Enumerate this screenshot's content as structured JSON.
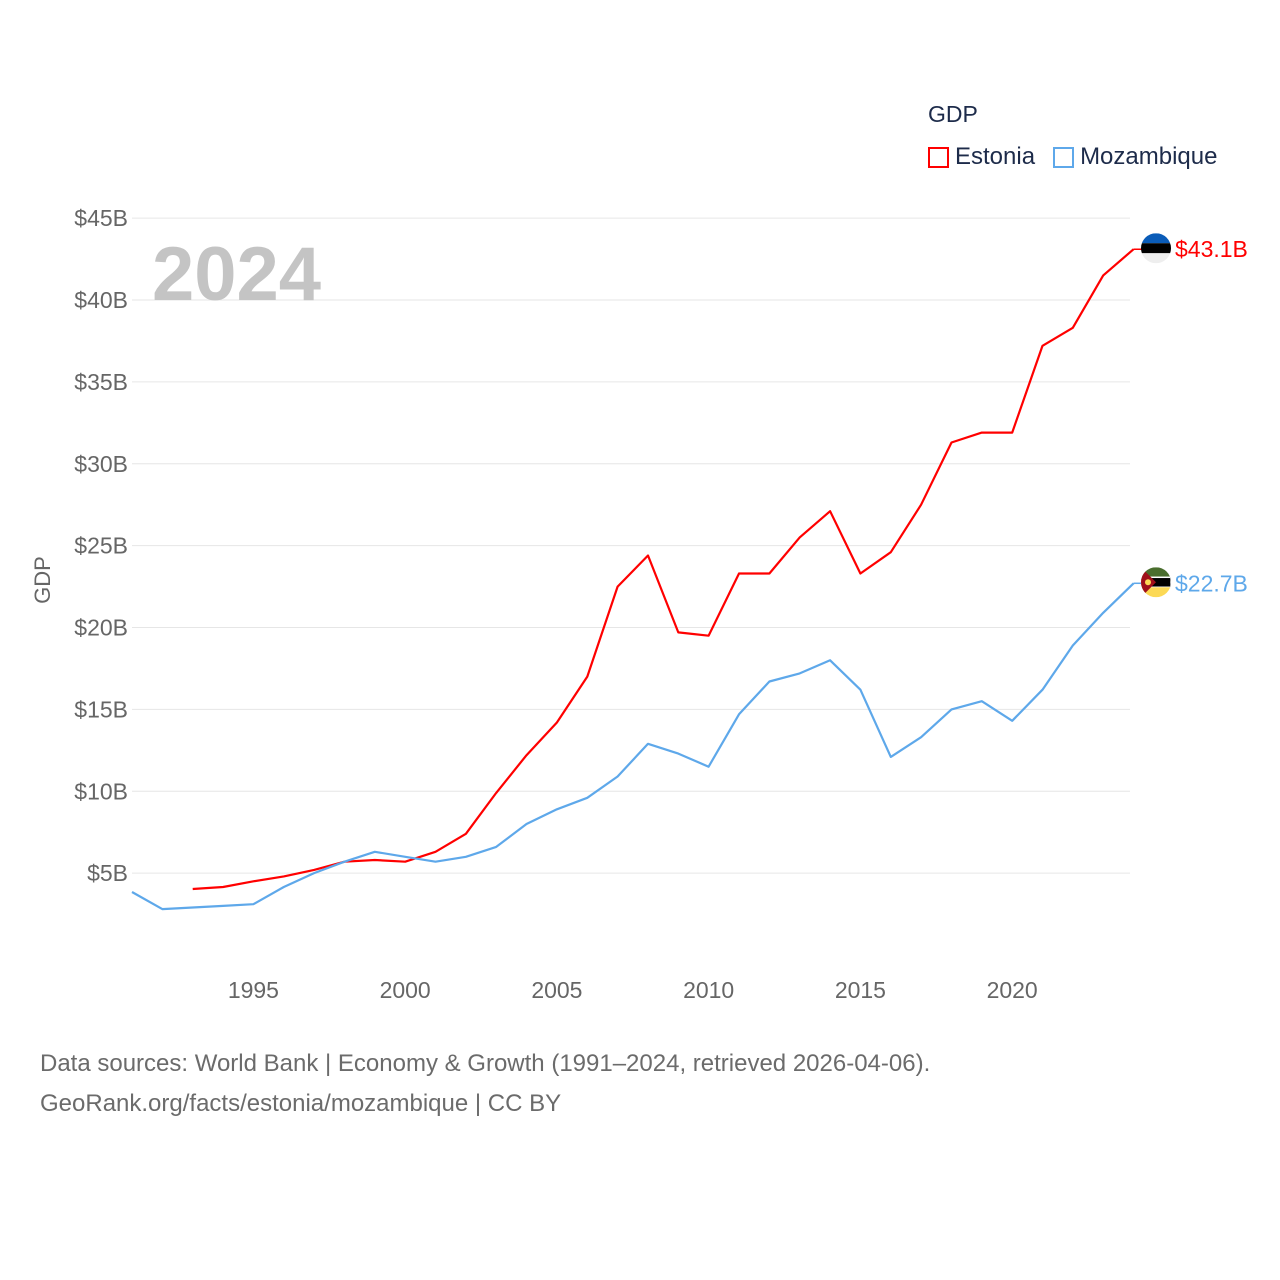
{
  "chart_data": {
    "type": "line",
    "title": "GDP",
    "year_label": "2024",
    "ylabel": "GDP",
    "xlabel": "",
    "ylim": [
      0,
      45
    ],
    "xlim": [
      1991,
      2024
    ],
    "y_ticks": [
      5,
      10,
      15,
      20,
      25,
      30,
      35,
      40,
      45
    ],
    "y_tick_labels": [
      "$5B",
      "$10B",
      "$15B",
      "$20B",
      "$25B",
      "$30B",
      "$35B",
      "$40B",
      "$45B"
    ],
    "x_ticks": [
      1995,
      2000,
      2005,
      2010,
      2015,
      2020
    ],
    "x_tick_labels": [
      "1995",
      "2000",
      "2005",
      "2010",
      "2015",
      "2020"
    ],
    "grid": true,
    "legend_position": "top-right",
    "series": [
      {
        "name": "Estonia",
        "color": "#ff0000",
        "end_label": "$43.1B",
        "flag": "estonia-flag",
        "x": [
          1993,
          1994,
          1995,
          1996,
          1997,
          1998,
          1999,
          2000,
          2001,
          2002,
          2003,
          2004,
          2005,
          2006,
          2007,
          2008,
          2009,
          2010,
          2011,
          2012,
          2013,
          2014,
          2015,
          2016,
          2017,
          2018,
          2019,
          2020,
          2021,
          2022,
          2023,
          2024
        ],
        "values": [
          4.03,
          4.15,
          4.5,
          4.8,
          5.2,
          5.7,
          5.8,
          5.7,
          6.3,
          7.4,
          9.9,
          12.2,
          14.2,
          17.0,
          22.5,
          24.4,
          19.7,
          19.5,
          23.3,
          23.3,
          25.5,
          27.1,
          23.3,
          24.6,
          27.5,
          31.3,
          31.9,
          31.9,
          37.2,
          38.3,
          41.5,
          43.1
        ]
      },
      {
        "name": "Mozambique",
        "color": "#5ea8ea",
        "end_label": "$22.7B",
        "flag": "mozambique-flag",
        "x": [
          1991,
          1992,
          1993,
          1994,
          1995,
          1996,
          1997,
          1998,
          1999,
          2000,
          2001,
          2002,
          2003,
          2004,
          2005,
          2006,
          2007,
          2008,
          2009,
          2010,
          2011,
          2012,
          2013,
          2014,
          2015,
          2016,
          2017,
          2018,
          2019,
          2020,
          2021,
          2022,
          2023,
          2024
        ],
        "values": [
          3.85,
          2.8,
          2.9,
          3.0,
          3.1,
          4.15,
          5.0,
          5.7,
          6.3,
          6.0,
          5.7,
          6.0,
          6.6,
          8.0,
          8.9,
          9.6,
          10.9,
          12.9,
          12.3,
          11.5,
          14.7,
          16.7,
          17.2,
          18.0,
          16.2,
          12.1,
          13.3,
          15.0,
          15.5,
          14.3,
          16.2,
          18.9,
          20.9,
          22.7
        ]
      }
    ]
  },
  "footer": {
    "line1": "Data sources: World Bank | Economy & Growth (1991–2024, retrieved 2026-04-06).",
    "line2": "GeoRank.org/facts/estonia/mozambique | CC BY"
  }
}
